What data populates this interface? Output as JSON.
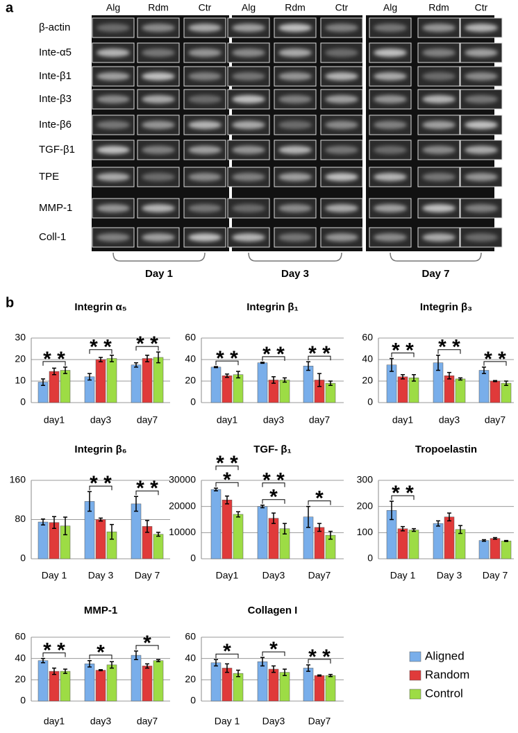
{
  "panel_a": {
    "label": "a",
    "genes": [
      "β-actin",
      "Inte-α5",
      "Inte-β1",
      "Inte-β3",
      "Inte-β6",
      "TGF-β1",
      "TPE",
      "MMP-1",
      "Coll-1"
    ],
    "days": [
      {
        "name": "Day 1",
        "lanes": [
          "Alg",
          "Rdm",
          "Ctr"
        ]
      },
      {
        "name": "Day 3",
        "lanes": [
          "Alg",
          "Rdm",
          "Ctr"
        ]
      },
      {
        "name": "Day 7",
        "lanes": [
          "Alg",
          "Rdm",
          "Ctr"
        ]
      }
    ]
  },
  "panel_b": {
    "label": "b"
  },
  "chart_data": [
    {
      "type": "bar",
      "title": "Integrin α₅",
      "categories": [
        "day1",
        "day3",
        "day7"
      ],
      "ylim": [
        0,
        30
      ],
      "yticks": [
        0,
        10,
        20,
        30
      ],
      "grid": true,
      "series": [
        {
          "name": "Aligned",
          "color": "#79aeea",
          "values": [
            9.5,
            12,
            17.5
          ],
          "errors": [
            1.5,
            1.5,
            1
          ]
        },
        {
          "name": "Random",
          "color": "#e03a3a",
          "values": [
            14.5,
            20,
            20.5
          ],
          "errors": [
            1.5,
            1,
            1.5
          ]
        },
        {
          "name": "Control",
          "color": "#9ddc45",
          "values": [
            15,
            20.5,
            21
          ],
          "errors": [
            1.5,
            1.5,
            2.5
          ]
        }
      ],
      "annotations": [
        [
          "* *"
        ],
        [
          "* *"
        ],
        [
          "* *"
        ]
      ]
    },
    {
      "type": "bar",
      "title": "Integrin β₁",
      "categories": [
        "day1",
        "day3",
        "day7"
      ],
      "ylim": [
        0,
        60
      ],
      "yticks": [
        0,
        20,
        40,
        60
      ],
      "grid": true,
      "series": [
        {
          "name": "Aligned",
          "color": "#79aeea",
          "values": [
            33,
            37,
            34
          ],
          "errors": [
            0.5,
            0.5,
            4
          ]
        },
        {
          "name": "Random",
          "color": "#e03a3a",
          "values": [
            25,
            21,
            21
          ],
          "errors": [
            1.5,
            3,
            6
          ]
        },
        {
          "name": "Control",
          "color": "#9ddc45",
          "values": [
            26,
            21,
            18
          ],
          "errors": [
            3,
            2,
            2
          ]
        }
      ],
      "annotations": [
        [
          "* *"
        ],
        [
          "* *"
        ],
        [
          "* *"
        ]
      ]
    },
    {
      "type": "bar",
      "title": "Integrin β₃",
      "categories": [
        "day1",
        "day3",
        "day7"
      ],
      "ylim": [
        0,
        60
      ],
      "yticks": [
        0,
        20,
        40,
        60
      ],
      "grid": true,
      "series": [
        {
          "name": "Aligned",
          "color": "#79aeea",
          "values": [
            35,
            37,
            30
          ],
          "errors": [
            6,
            7,
            3
          ]
        },
        {
          "name": "Random",
          "color": "#e03a3a",
          "values": [
            24,
            25,
            20
          ],
          "errors": [
            2,
            3,
            0.5
          ]
        },
        {
          "name": "Control",
          "color": "#9ddc45",
          "values": [
            23,
            22,
            18
          ],
          "errors": [
            3,
            1,
            2
          ]
        }
      ],
      "annotations": [
        [
          "* *"
        ],
        [
          "* *"
        ],
        [
          "* *"
        ]
      ]
    },
    {
      "type": "bar",
      "title": "Integrin β₆",
      "categories": [
        "Day 1",
        "Day 3",
        "Day 7"
      ],
      "ylim": [
        0,
        160
      ],
      "yticks": [
        0,
        80,
        160
      ],
      "grid": true,
      "series": [
        {
          "name": "Aligned",
          "color": "#79aeea",
          "values": [
            75,
            117,
            112
          ],
          "errors": [
            6,
            20,
            15
          ]
        },
        {
          "name": "Random",
          "color": "#e03a3a",
          "values": [
            74,
            80,
            66
          ],
          "errors": [
            12,
            3,
            12
          ]
        },
        {
          "name": "Control",
          "color": "#9ddc45",
          "values": [
            67,
            55,
            50
          ],
          "errors": [
            18,
            15,
            4
          ]
        }
      ],
      "annotations": [
        [],
        [
          "* *"
        ],
        [
          "* *"
        ]
      ]
    },
    {
      "type": "bar",
      "title": "TGF- β₁",
      "categories": [
        "Day1",
        "Day3",
        "Day7"
      ],
      "ylim": [
        0,
        30000
      ],
      "yticks": [
        0,
        10000,
        20000,
        30000
      ],
      "grid": true,
      "series": [
        {
          "name": "Aligned",
          "color": "#79aeea",
          "values": [
            26500,
            20000,
            16000
          ],
          "errors": [
            500,
            500,
            4000
          ]
        },
        {
          "name": "Random",
          "color": "#e03a3a",
          "values": [
            22500,
            15500,
            12000
          ],
          "errors": [
            1500,
            2000,
            1500
          ]
        },
        {
          "name": "Control",
          "color": "#9ddc45",
          "values": [
            17000,
            11500,
            9000
          ],
          "errors": [
            1000,
            2000,
            1500
          ]
        }
      ],
      "annotations": [
        [
          "*",
          "* *"
        ],
        [
          "*",
          "* *"
        ],
        [
          "*"
        ]
      ]
    },
    {
      "type": "bar",
      "title": "Tropoelastin",
      "categories": [
        "Day 1",
        "Day 3",
        "Day 7"
      ],
      "ylim": [
        0,
        300
      ],
      "yticks": [
        0,
        100,
        200,
        300
      ],
      "grid": true,
      "series": [
        {
          "name": "Aligned",
          "color": "#79aeea",
          "values": [
            185,
            135,
            70
          ],
          "errors": [
            35,
            10,
            3
          ]
        },
        {
          "name": "Random",
          "color": "#e03a3a",
          "values": [
            115,
            160,
            78
          ],
          "errors": [
            8,
            15,
            3
          ]
        },
        {
          "name": "Control",
          "color": "#9ddc45",
          "values": [
            110,
            112,
            68
          ],
          "errors": [
            5,
            15,
            2
          ]
        }
      ],
      "annotations": [
        [
          "* *"
        ],
        [],
        []
      ]
    },
    {
      "type": "bar",
      "title": "MMP-1",
      "categories": [
        "day1",
        "day3",
        "day7"
      ],
      "ylim": [
        0,
        60
      ],
      "yticks": [
        0,
        20,
        40,
        60
      ],
      "grid": true,
      "series": [
        {
          "name": "Aligned",
          "color": "#79aeea",
          "values": [
            38,
            35,
            43
          ],
          "errors": [
            2,
            3,
            4
          ]
        },
        {
          "name": "Random",
          "color": "#e03a3a",
          "values": [
            28,
            29,
            33
          ],
          "errors": [
            3,
            0.5,
            2
          ]
        },
        {
          "name": "Control",
          "color": "#9ddc45",
          "values": [
            28,
            34,
            38
          ],
          "errors": [
            2,
            3,
            1
          ]
        }
      ],
      "annotations": [
        [
          "* *"
        ],
        [
          "*"
        ],
        [
          "*"
        ]
      ]
    },
    {
      "type": "bar",
      "title": "Collagen I",
      "categories": [
        "Day 1",
        "Day3",
        "Day7"
      ],
      "ylim": [
        0,
        60
      ],
      "yticks": [
        0,
        20,
        40,
        60
      ],
      "grid": true,
      "series": [
        {
          "name": "Aligned",
          "color": "#79aeea",
          "values": [
            36,
            37,
            31
          ],
          "errors": [
            3,
            4,
            3
          ]
        },
        {
          "name": "Random",
          "color": "#e03a3a",
          "values": [
            31,
            30,
            24
          ],
          "errors": [
            4,
            3,
            0.5
          ]
        },
        {
          "name": "Control",
          "color": "#9ddc45",
          "values": [
            26,
            27,
            24
          ],
          "errors": [
            3,
            3,
            1
          ]
        }
      ],
      "annotations": [
        [
          "*"
        ],
        [
          "*"
        ],
        [
          "* *"
        ]
      ]
    }
  ]
}
